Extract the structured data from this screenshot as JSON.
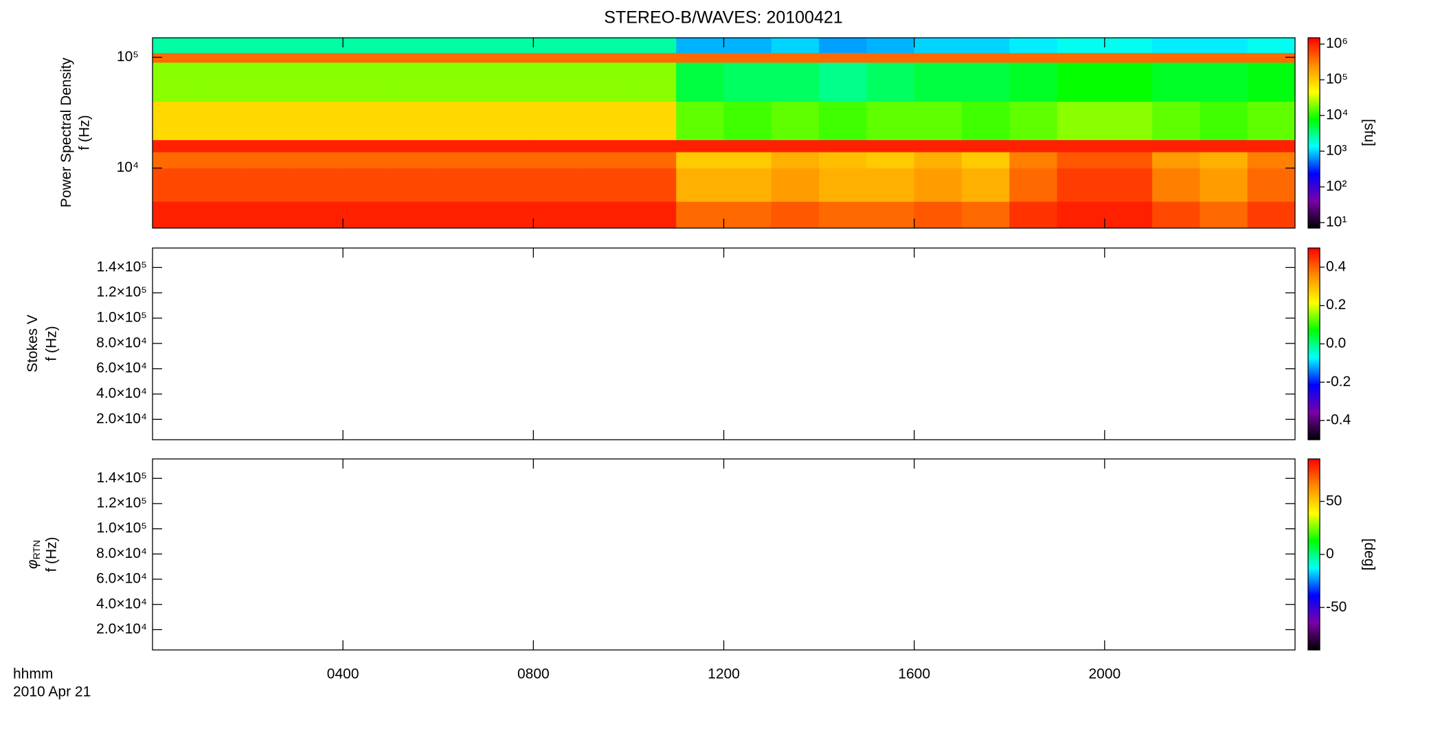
{
  "chart_data": [
    {
      "type": "heatmap",
      "title": "STEREO-B/WAVES: 20100421",
      "ylabel": "Power Spectral Density",
      "ylabel2": "f (Hz)",
      "ylog": true,
      "ylim": [
        2870,
        150000
      ],
      "yticks": [
        {
          "value": 10000,
          "label": "10⁴"
        },
        {
          "value": 100000,
          "label": "10⁵"
        }
      ],
      "xlim": [
        0,
        24
      ],
      "xbins": [
        0,
        1,
        2,
        3,
        4,
        5,
        6,
        7,
        8,
        9,
        10,
        11,
        12,
        13,
        14,
        15,
        16,
        17,
        18,
        19,
        20,
        21,
        22,
        23,
        24
      ],
      "ybins": [
        2870,
        5000,
        10000,
        14000,
        18000,
        40000,
        90000,
        110000,
        150000
      ],
      "z": [
        [
          1000000,
          1000000,
          1000000,
          1000000,
          1000000,
          1000000,
          1000000,
          1000000,
          1000000,
          1000000,
          1000000,
          400000,
          400000,
          500000,
          400000,
          400000,
          500000,
          400000,
          800000,
          1000000,
          1000000,
          600000,
          400000,
          700000
        ],
        [
          600000,
          600000,
          600000,
          600000,
          600000,
          600000,
          600000,
          600000,
          600000,
          600000,
          600000,
          150000,
          150000,
          200000,
          150000,
          150000,
          200000,
          150000,
          400000,
          700000,
          700000,
          300000,
          200000,
          400000
        ],
        [
          400000,
          400000,
          400000,
          400000,
          400000,
          400000,
          400000,
          400000,
          400000,
          400000,
          400000,
          100000,
          100000,
          150000,
          120000,
          100000,
          150000,
          100000,
          300000,
          500000,
          500000,
          200000,
          150000,
          300000
        ],
        [
          1000000,
          1000000,
          1000000,
          1000000,
          1000000,
          1000000,
          1000000,
          1000000,
          1000000,
          1000000,
          1000000,
          1000000,
          1000000,
          1000000,
          1000000,
          1000000,
          1000000,
          1000000,
          1000000,
          1000000,
          1000000,
          1000000,
          1000000,
          1000000
        ],
        [
          80000,
          80000,
          80000,
          80000,
          80000,
          80000,
          80000,
          80000,
          80000,
          80000,
          80000,
          15000,
          12000,
          15000,
          12000,
          15000,
          15000,
          12000,
          15000,
          20000,
          20000,
          15000,
          12000,
          15000
        ],
        [
          20000,
          20000,
          20000,
          20000,
          20000,
          20000,
          20000,
          20000,
          20000,
          20000,
          20000,
          5000,
          4000,
          4000,
          3000,
          4000,
          5000,
          5000,
          6000,
          8000,
          8000,
          6000,
          6000,
          7000
        ],
        [
          400000,
          400000,
          400000,
          400000,
          400000,
          400000,
          400000,
          400000,
          400000,
          400000,
          400000,
          400000,
          400000,
          400000,
          400000,
          400000,
          400000,
          400000,
          400000,
          400000,
          400000,
          400000,
          400000,
          400000
        ],
        [
          2500,
          2500,
          2500,
          2500,
          2500,
          2500,
          2500,
          2500,
          2500,
          2500,
          2500,
          800,
          800,
          1000,
          700,
          800,
          1000,
          1000,
          1200,
          1500,
          1500,
          1200,
          1200,
          1500
        ]
      ],
      "zlog": true,
      "zlim": [
        7,
        1500000
      ],
      "zticks": [
        {
          "value": 10,
          "label": "10¹"
        },
        {
          "value": 100,
          "label": "10²"
        },
        {
          "value": 1000,
          "label": "10³"
        },
        {
          "value": 10000,
          "label": "10⁴"
        },
        {
          "value": 100000,
          "label": "10⁵"
        },
        {
          "value": 1000000,
          "label": "10⁶"
        }
      ],
      "colorbar_label": "[sfu]",
      "colormap": [
        "#000000",
        "#7a00a8",
        "#0000ff",
        "#00ffff",
        "#00ff00",
        "#ffff00",
        "#ff8c00",
        "#ff0000"
      ]
    },
    {
      "type": "heatmap",
      "ylabel": "Stokes V",
      "ylabel2": "f (Hz)",
      "ylim": [
        3900,
        155400
      ],
      "yticks": [
        {
          "value": 20000,
          "label": "2.0×10⁴"
        },
        {
          "value": 40000,
          "label": "4.0×10⁴"
        },
        {
          "value": 60000,
          "label": "6.0×10⁴"
        },
        {
          "value": 80000,
          "label": "8.0×10⁴"
        },
        {
          "value": 100000,
          "label": "1.0×10⁵"
        },
        {
          "value": 120000,
          "label": "1.2×10⁵"
        },
        {
          "value": 140000,
          "label": "1.4×10⁵"
        }
      ],
      "xlim": [
        0,
        24
      ],
      "zlim": [
        -0.5,
        0.5
      ],
      "zticks": [
        -0.4,
        -0.2,
        {
          "value": 0,
          "label": "0.0"
        },
        0.2,
        0.4
      ],
      "colormap": [
        "#000000",
        "#7a00a8",
        "#0000ff",
        "#00ffff",
        "#00ff00",
        "#ffff00",
        "#ff8c00",
        "#ff0000"
      ]
    },
    {
      "type": "heatmap",
      "ylabel": "φ",
      "ylabel_sub": "RTN",
      "ylabel2": "f (Hz)",
      "ylim": [
        3900,
        155400
      ],
      "yticks": [
        {
          "value": 20000,
          "label": "2.0×10⁴"
        },
        {
          "value": 40000,
          "label": "4.0×10⁴"
        },
        {
          "value": 60000,
          "label": "6.0×10⁴"
        },
        {
          "value": 80000,
          "label": "8.0×10⁴"
        },
        {
          "value": 100000,
          "label": "1.0×10⁵"
        },
        {
          "value": 120000,
          "label": "1.2×10⁵"
        },
        {
          "value": 140000,
          "label": "1.4×10⁵"
        }
      ],
      "xlim": [
        0,
        24
      ],
      "xticks": [
        {
          "value": 4,
          "label": "0400"
        },
        {
          "value": 8,
          "label": "0800"
        },
        {
          "value": 12,
          "label": "1200"
        },
        {
          "value": 16,
          "label": "1600"
        },
        {
          "value": 20,
          "label": "2000"
        }
      ],
      "xlabel": "hhmm",
      "xlabel2": "2010 Apr 21",
      "zlim": [
        -90,
        90
      ],
      "zticks": [
        -50,
        0,
        50
      ],
      "colorbar_label": "[deg]",
      "colormap": [
        "#000000",
        "#7a00a8",
        "#0000ff",
        "#00ffff",
        "#00ff00",
        "#ffff00",
        "#ff8c00",
        "#ff0000"
      ]
    }
  ]
}
